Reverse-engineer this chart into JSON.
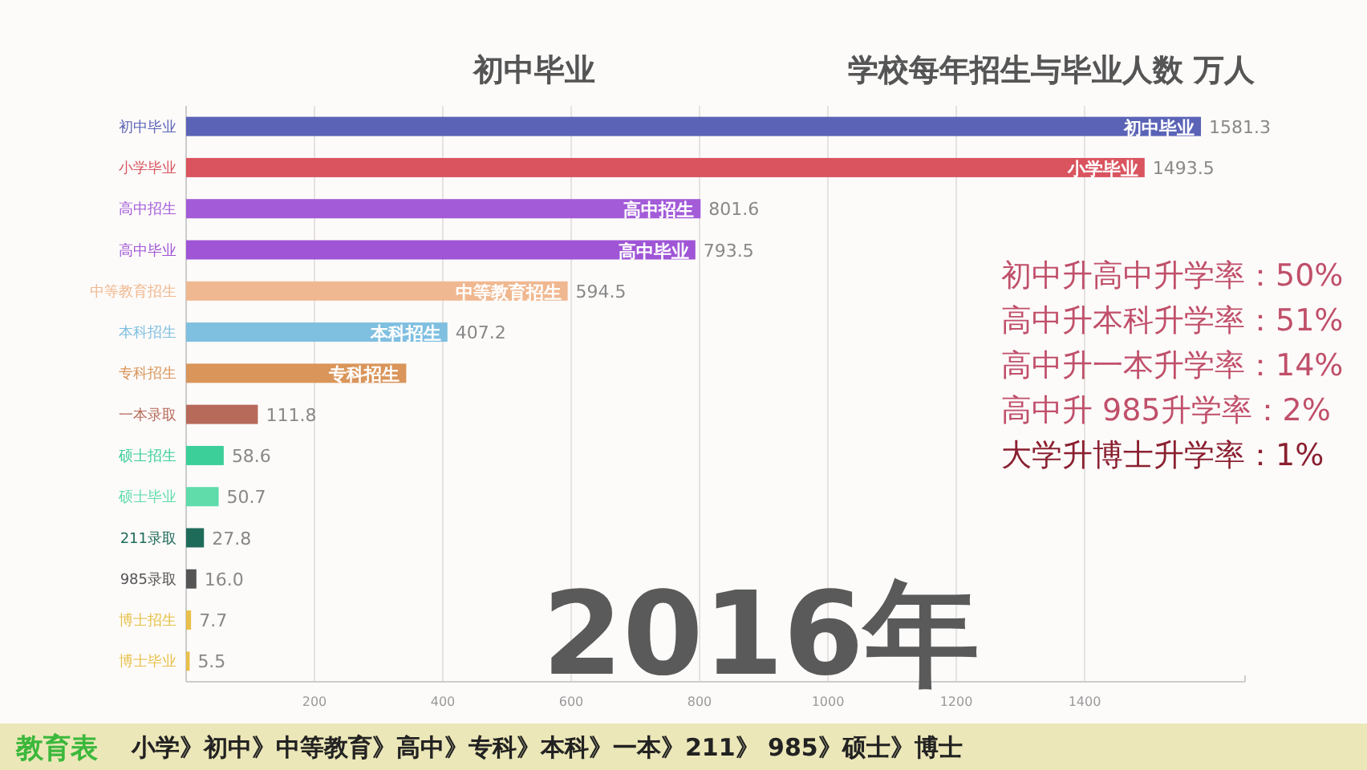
{
  "chart_data": {
    "type": "bar",
    "orientation": "horizontal",
    "title": "学校每年招生与毕业人数 万人",
    "categories": [
      "初中毕业",
      "小学毕业",
      "高中招生",
      "高中毕业",
      "中等教育招生",
      "本科招生",
      "专科招生",
      "一本录取",
      "硕士招生",
      "硕士毕业",
      "211录取",
      "985录取",
      "博士招生",
      "博士毕业"
    ],
    "values": [
      1581.3,
      1493.5,
      801.6,
      793.5,
      594.5,
      407.2,
      343,
      111.8,
      58.6,
      50.7,
      27.8,
      16.0,
      7.7,
      5.5
    ],
    "value_labels": [
      "1581.3",
      "1493.5",
      "801.6",
      "793.5",
      "594.5",
      "407.2",
      null,
      "111.8",
      "58.6",
      "50.7",
      "27.8",
      "16.0",
      "7.7",
      "5.5"
    ],
    "colors": [
      "#5b63b7",
      "#d9545f",
      "#a35bd8",
      "#9f55d6",
      "#f0b890",
      "#7fbfe0",
      "#d9955a",
      "#b76a5a",
      "#3ccf9a",
      "#5fdcaa",
      "#1f6b5a",
      "#555555",
      "#e8c04a",
      "#e8c04a"
    ],
    "xlim": [
      0,
      1650
    ],
    "xticks": [
      200,
      400,
      600,
      800,
      1000,
      1200,
      1400
    ],
    "grid": "x",
    "annotations": [
      "初中毕业",
      "2016年",
      "初中升高中升学率：50%",
      "高中升本科升学率：51%",
      "高中升一本升学率：14%",
      "高中升 985升学率：2%",
      "大学升博士升学率：1%",
      "教育表",
      "小学》初中》中等教育》高中》专科》本科》一本》211》 985》硕士》博士"
    ]
  }
}
